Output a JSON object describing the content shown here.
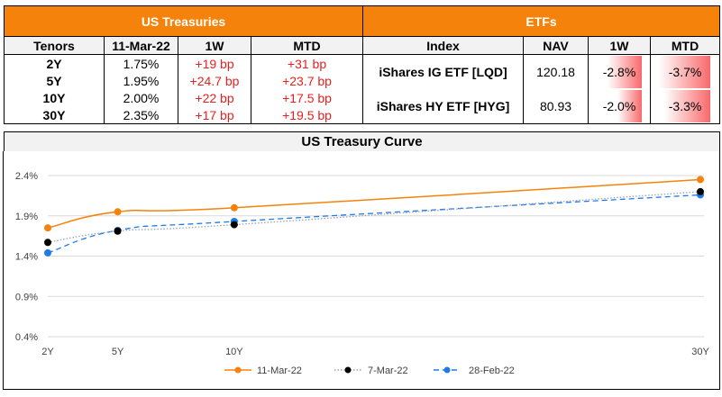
{
  "treasuries": {
    "title": "US Treasuries",
    "columns": [
      "Tenors",
      "11-Mar-22",
      "1W",
      "MTD"
    ],
    "rows": [
      {
        "tenor": "2Y",
        "yield": "1.75%",
        "w1": "+19 bp",
        "mtd": "+31 bp"
      },
      {
        "tenor": "5Y",
        "yield": "1.95%",
        "w1": "+24.7 bp",
        "mtd": "+23.7 bp"
      },
      {
        "tenor": "10Y",
        "yield": "2.00%",
        "w1": "+22 bp",
        "mtd": "+17.5 bp"
      },
      {
        "tenor": "30Y",
        "yield": "2.35%",
        "w1": "+17 bp",
        "mtd": "+19.5 bp"
      }
    ]
  },
  "etfs": {
    "title": "ETFs",
    "columns": [
      "Index",
      "NAV",
      "1W",
      "MTD"
    ],
    "rows": [
      {
        "name": "iShares IG ETF [LQD]",
        "nav": "120.18",
        "w1": "-2.8%",
        "mtd": "-3.7%",
        "w1_value": -2.8,
        "mtd_value": -3.7
      },
      {
        "name": "iShares HY ETF [HYG]",
        "nav": "80.93",
        "w1": "-2.0%",
        "mtd": "-3.3%",
        "w1_value": -2.0,
        "mtd_value": -3.3
      }
    ],
    "bar_color": "#f8696b"
  },
  "chart_data": {
    "type": "line",
    "title": "US Treasury Curve",
    "xlabel": "",
    "ylabel": "",
    "x_categories": [
      "2Y",
      "5Y",
      "10Y",
      "30Y"
    ],
    "x_years": [
      2,
      5,
      10,
      30
    ],
    "y_ticks": [
      "2.4%",
      "1.9%",
      "1.4%",
      "0.9%",
      "0.4%"
    ],
    "y_tick_values": [
      2.4,
      1.9,
      1.4,
      0.9,
      0.4
    ],
    "ylim": [
      0.4,
      2.4
    ],
    "grid": true,
    "legend_position": "bottom",
    "series": [
      {
        "name": "11-Mar-22",
        "values": [
          1.75,
          1.95,
          2.0,
          2.35
        ],
        "color": "#f5820b",
        "style": "solid"
      },
      {
        "name": "7-Mar-22",
        "values": [
          1.57,
          1.71,
          1.79,
          2.2
        ],
        "color": "#000000",
        "line_color": "#9aa3b5",
        "style": "dotted"
      },
      {
        "name": "28-Feb-22",
        "values": [
          1.44,
          1.72,
          1.83,
          2.16
        ],
        "color": "#1e7be8",
        "style": "dashed"
      }
    ]
  }
}
